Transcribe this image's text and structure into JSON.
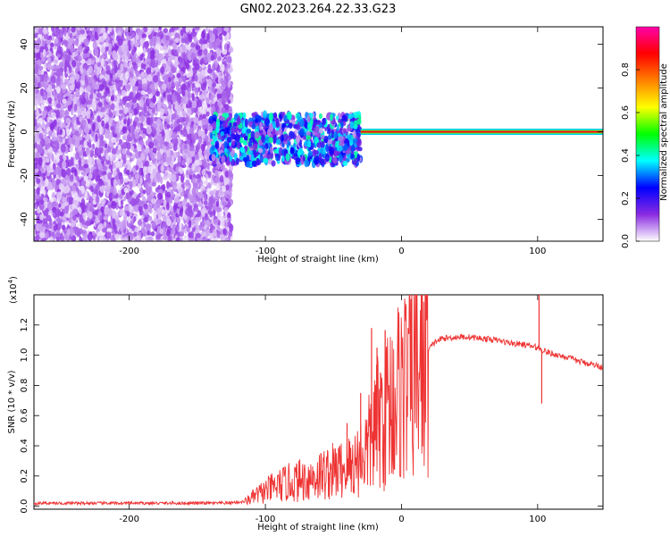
{
  "figure_title": "GN02.2023.264.22.33.G23",
  "chart_data": [
    {
      "type": "heatmap",
      "title": "GN02.2023.264.22.33.G23",
      "xlabel": "Height of straight line (km)",
      "ylabel": "Frequency (Hz)",
      "xlim": [
        -270,
        148
      ],
      "ylim": [
        -50,
        48
      ],
      "xticks": [
        -200,
        -100,
        0,
        100
      ],
      "xtick_labels": [
        "-200",
        "-100",
        "0",
        "100"
      ],
      "yticks": [
        -40,
        -20,
        0,
        20,
        40
      ],
      "ytick_labels": [
        "-40",
        "-20",
        "0",
        "20",
        "40"
      ],
      "colorbar": {
        "label": "Normalized spectral amplitude",
        "range": [
          0,
          1
        ],
        "ticks": [
          0.0,
          0.2,
          0.4,
          0.6,
          0.8
        ],
        "tick_labels": [
          "0.0",
          "0.2",
          "0.4",
          "0.6",
          "0.8"
        ],
        "colors": [
          "#ffffff",
          "#8a2be2",
          "#0000ff",
          "#00ffff",
          "#00ff00",
          "#ffff00",
          "#ff8000",
          "#ff0000",
          "#ff00aa"
        ]
      },
      "regions": [
        {
          "name": "broadband noise",
          "x": [
            -270,
            -125
          ],
          "freq": [
            -50,
            48
          ],
          "amplitude": 0.1
        },
        {
          "name": "scattered band",
          "x": [
            -140,
            -30
          ],
          "freq": [
            -15,
            8
          ],
          "amplitude": 0.35
        },
        {
          "name": "tone line",
          "x": [
            -30,
            148
          ],
          "freq": [
            0,
            0
          ],
          "amplitude": 0.9
        }
      ]
    },
    {
      "type": "line",
      "xlabel": "Height of straight line (km)",
      "ylabel": "SNR (10 * v/v)",
      "scale_label": "(x10",
      "scale_exponent": "4",
      "scale_suffix": ")",
      "xlim": [
        -270,
        148
      ],
      "ylim": [
        -0.02,
        1.4
      ],
      "xticks": [
        -200,
        -100,
        0,
        100
      ],
      "xtick_labels": [
        "-200",
        "-100",
        "0",
        "100"
      ],
      "yticks": [
        0.0,
        0.2,
        0.4,
        0.6,
        0.8,
        1.0,
        1.2
      ],
      "ytick_labels": [
        "0.0",
        "0.2",
        "0.4",
        "0.6",
        "0.8",
        "1.0",
        "1.2"
      ],
      "series": [
        {
          "name": "SNR",
          "color": "#ee3333",
          "x": [
            -270,
            -250,
            -230,
            -210,
            -190,
            -170,
            -150,
            -130,
            -115,
            -105,
            -95,
            -85,
            -75,
            -65,
            -55,
            -45,
            -35,
            -25,
            -20,
            -15,
            -10,
            -5,
            0,
            5,
            10,
            15,
            20,
            25,
            30,
            40,
            50,
            60,
            70,
            80,
            90,
            95,
            100,
            102,
            105,
            110,
            120,
            130,
            140,
            148
          ],
          "y": [
            0.02,
            0.02,
            0.02,
            0.02,
            0.02,
            0.02,
            0.02,
            0.02,
            0.03,
            0.08,
            0.12,
            0.15,
            0.17,
            0.19,
            0.22,
            0.24,
            0.28,
            0.38,
            0.5,
            0.6,
            0.68,
            0.72,
            0.8,
            0.84,
            0.9,
            0.97,
            1.04,
            1.09,
            1.11,
            1.12,
            1.12,
            1.11,
            1.1,
            1.08,
            1.07,
            1.06,
            1.05,
            1.04,
            1.03,
            1.01,
            0.99,
            0.96,
            0.94,
            0.92
          ]
        }
      ],
      "spikes": [
        {
          "x": -40,
          "y": 0.55
        },
        {
          "x": -30,
          "y": 0.75
        },
        {
          "x": -22,
          "y": 1.18
        },
        {
          "x": -18,
          "y": 1.05
        },
        {
          "x": -12,
          "y": 1.16
        },
        {
          "x": 101,
          "y": 1.4
        },
        {
          "x": 103,
          "y": 0.68
        }
      ]
    }
  ]
}
